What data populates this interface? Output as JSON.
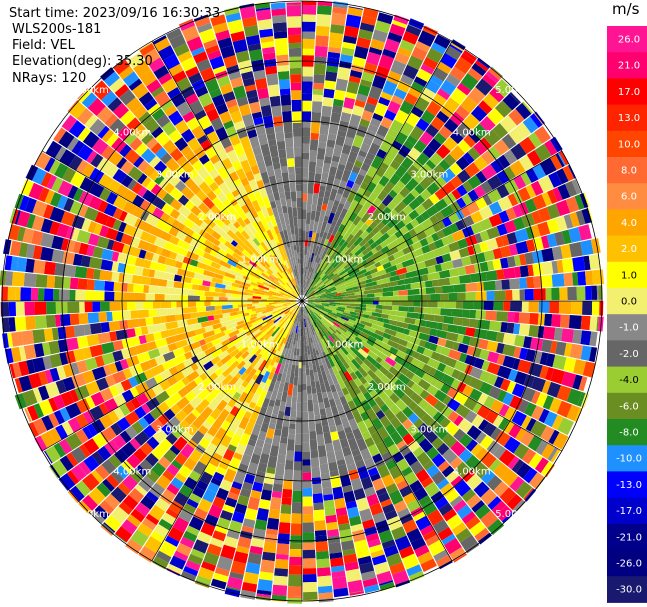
{
  "header": {
    "start_time": "Start time: 2023/09/16 16:30:33",
    "instrument": "WLS200s-181",
    "field": "Field: VEL",
    "elevation": "Elevation(deg): 35.30",
    "nrays": "NRays: 120"
  },
  "colorbar": {
    "unit": "m/s",
    "ticks": [
      "26.0",
      "21.0",
      "17.0",
      "13.0",
      "10.0",
      "8.0",
      "6.0",
      "4.0",
      "2.0",
      "1.0",
      "0.0",
      "-1.0",
      "-2.0",
      "-4.0",
      "-6.0",
      "-8.0",
      "-10.0",
      "-13.0",
      "-17.0",
      "-21.0",
      "-26.0",
      "-30.0"
    ],
    "colors": [
      "#ff1493",
      "#ff006e",
      "#ff0000",
      "#ff2400",
      "#ff4500",
      "#ff6a33",
      "#ff8c40",
      "#ffa500",
      "#ffc000",
      "#ffff00",
      "#f3f070",
      "#888888",
      "#666666",
      "#9acd32",
      "#6b8e23",
      "#228b22",
      "#1e90ff",
      "#0000ff",
      "#0000cd",
      "#00008b",
      "#000080",
      "#191970"
    ]
  },
  "chart_data": {
    "type": "ppi",
    "field": "VEL",
    "unit": "m/s",
    "nrays": 120,
    "elevation_deg": 35.3,
    "range_rings": [
      "1.00km",
      "2.00km",
      "3.00km",
      "4.00km",
      "5.00km"
    ],
    "center_pattern": {
      "inner_range_km": 3.0,
      "positive_bearing_deg": 270,
      "negative_bearing_deg": 90,
      "positive_colors": [
        "#ffa500",
        "#ffc000",
        "#ffff00",
        "#f3f070"
      ],
      "negative_colors": [
        "#9acd32",
        "#6b8e23",
        "#228b22"
      ],
      "transition_colors": [
        "#888888",
        "#666666"
      ]
    }
  }
}
